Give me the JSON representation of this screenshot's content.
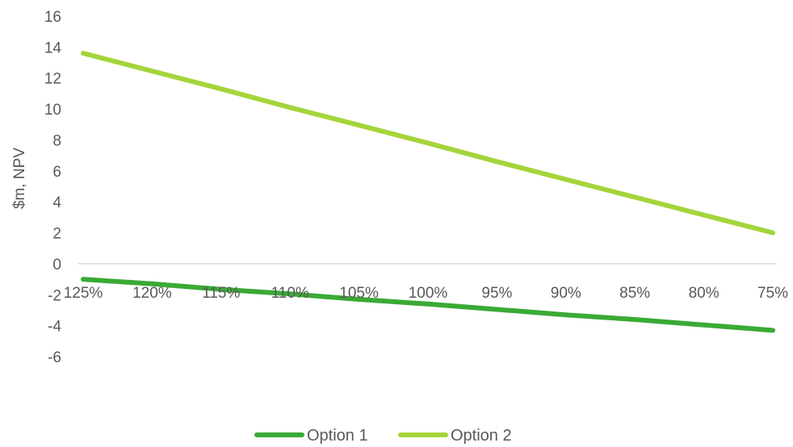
{
  "chart_data": {
    "type": "line",
    "categories": [
      "125%",
      "120%",
      "115%",
      "110%",
      "105%",
      "100%",
      "95%",
      "90%",
      "85%",
      "80%",
      "75%"
    ],
    "series": [
      {
        "name": "Option 1",
        "color": "#3aaa35",
        "values": [
          -1.0,
          -1.3,
          -1.65,
          -1.95,
          -2.3,
          -2.6,
          -2.95,
          -3.3,
          -3.6,
          -3.95,
          -4.3
        ]
      },
      {
        "name": "Option 2",
        "color": "#a5d43b",
        "values": [
          13.6,
          12.45,
          11.3,
          10.1,
          8.95,
          7.8,
          6.6,
          5.45,
          4.3,
          3.15,
          2.0
        ]
      }
    ],
    "yticks": [
      16,
      14,
      12,
      10,
      8,
      6,
      4,
      2,
      0,
      -2,
      -4,
      -6
    ],
    "ylim": [
      -6,
      16
    ],
    "ylabel": "$m, NPV",
    "xlabel": "",
    "grid": false,
    "legend_position": "bottom"
  }
}
